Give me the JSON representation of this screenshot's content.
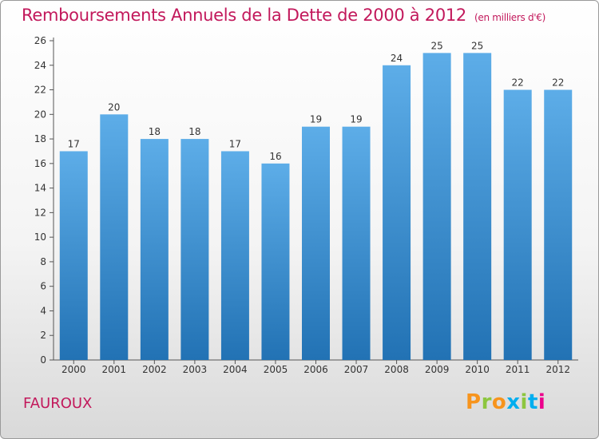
{
  "header": {
    "title": "Remboursements Annuels de la Dette de 2000 à 2012",
    "unit": "(en milliers d'€)"
  },
  "footer": {
    "location": "FAUROUX",
    "brand": "Proxiti"
  },
  "colors": {
    "title": "#c2185b",
    "bar_top": "#5dade8",
    "bar_bottom": "#2272b4"
  },
  "chart_data": {
    "type": "bar",
    "title": "Remboursements Annuels de la Dette de 2000 à 2012",
    "subtitle": "(en milliers d'€)",
    "xlabel": "",
    "ylabel": "",
    "categories": [
      "2000",
      "2001",
      "2002",
      "2003",
      "2004",
      "2005",
      "2006",
      "2007",
      "2008",
      "2009",
      "2010",
      "2011",
      "2012"
    ],
    "values": [
      17,
      20,
      18,
      18,
      17,
      16,
      19,
      19,
      24,
      25,
      25,
      22,
      22
    ],
    "ylim": [
      0,
      26
    ],
    "yticks": [
      0,
      2,
      4,
      6,
      8,
      10,
      12,
      14,
      16,
      18,
      20,
      22,
      24,
      26
    ],
    "grid": false,
    "legend": "none"
  }
}
